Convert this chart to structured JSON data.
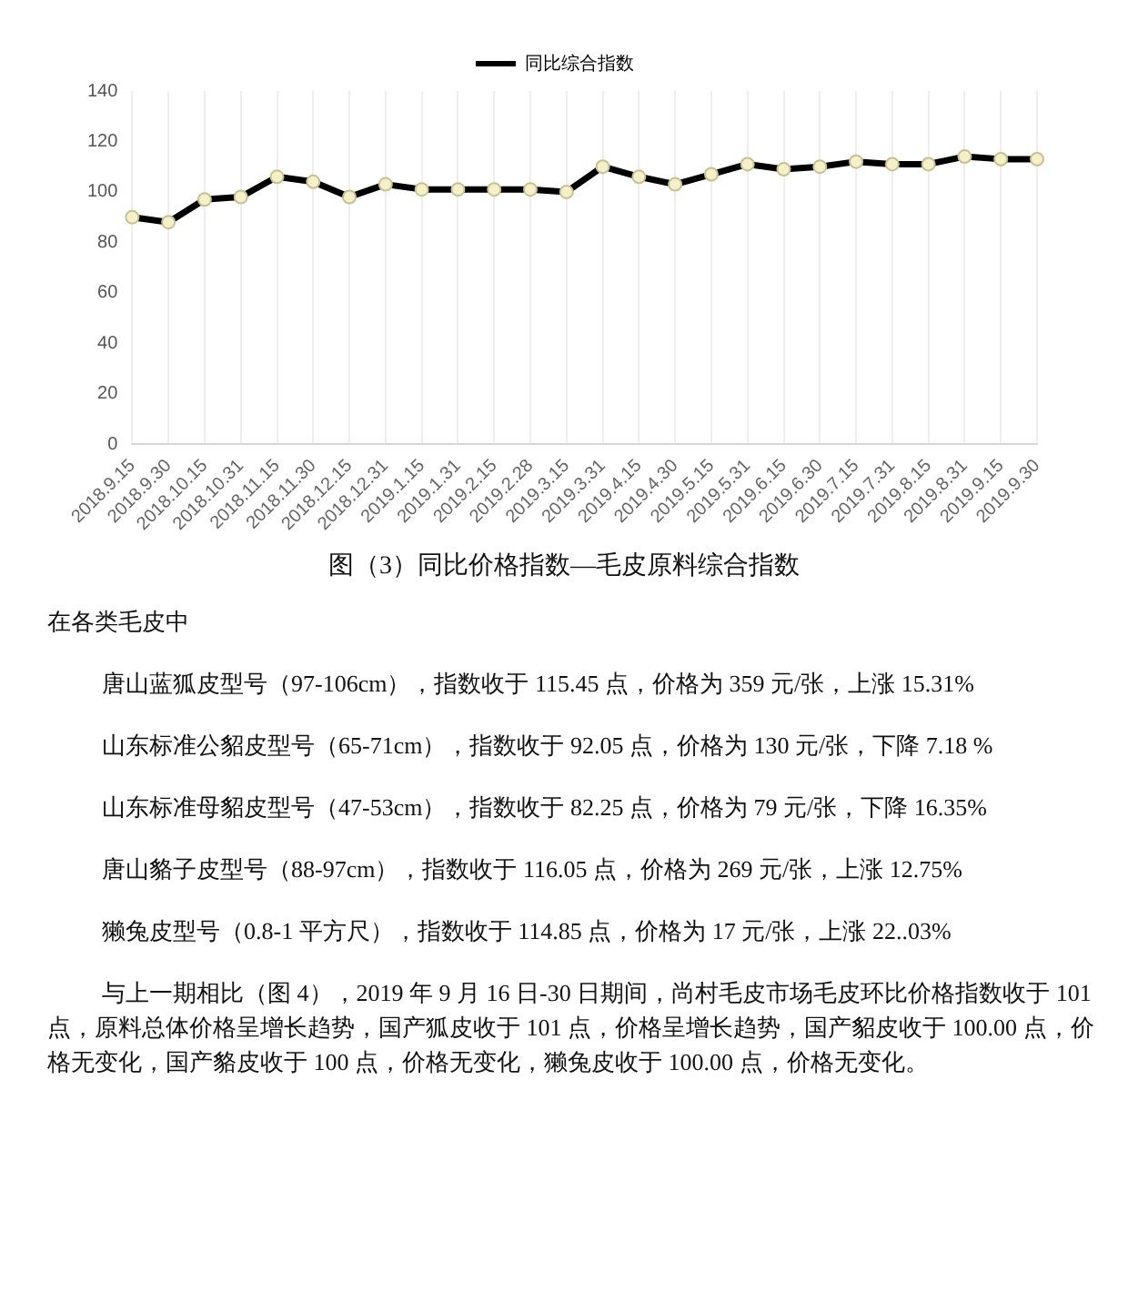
{
  "chart_data": {
    "type": "line",
    "title": "图（3）同比价格指数—毛皮原料综合指数",
    "categories": [
      "2018.9.15",
      "2018.9.30",
      "2018.10.15",
      "2018.10.31",
      "2018.11.15",
      "2018.11.30",
      "2018.12.15",
      "2018.12.31",
      "2019.1.15",
      "2019.1.31",
      "2019.2.15",
      "2019.2.28",
      "2019.3.15",
      "2019.3.31",
      "2019.4.15",
      "2019.4.30",
      "2019.5.15",
      "2019.5.31",
      "2019.6.15",
      "2019.6.30",
      "2019.7.15",
      "2019.7.31",
      "2019.8.15",
      "2019.8.31",
      "2019.9.15",
      "2019.9.30"
    ],
    "series": [
      {
        "name": "同比综合指数",
        "color": "#000000",
        "values": [
          90,
          88,
          97,
          98,
          106,
          104,
          98,
          103,
          101,
          101,
          101,
          101,
          100,
          110,
          106,
          103,
          107,
          111,
          109,
          110,
          112,
          111,
          111,
          114,
          113,
          113
        ]
      }
    ],
    "ylim": [
      0,
      140
    ],
    "yticks": [
      0,
      20,
      40,
      60,
      80,
      100,
      120,
      140
    ],
    "grid": "x",
    "legend": "top",
    "marker": "circle",
    "line_style": "solid",
    "annotations": [
      "在各类毛皮中",
      "唐山蓝狐皮型号（97-106cm），指数收于 115.45 点，价格为 359 元/张，上涨 15.31%",
      "山东标准公貂皮型号（65-71cm），指数收于 92.05 点，价格为 130 元/张，下降 7.18 %",
      "山东标准母貂皮型号（47-53cm），指数收于 82.25 点，价格为 79 元/张，下降 16.35%",
      "唐山貉子皮型号（88-97cm），指数收于 116.05 点，价格为 269 元/张，上涨 12.75%",
      "獭兔皮型号（0.8-1 平方尺），指数收于 114.85 点，价格为 17 元/张，上涨 22..03%",
      "与上一期相比（图 4），2019 年 9 月 16 日-30 日期间，尚村毛皮市场毛皮环比价格指数收于 101 点，原料总体价格呈增长趋势，国产狐皮收于 101 点，价格呈增长趋势，国产貂皮收于 100.00 点，价格无变化，国产貉皮收于 100 点，价格无变化，獭兔皮收于 100.00 点，价格无变化。"
    ]
  }
}
